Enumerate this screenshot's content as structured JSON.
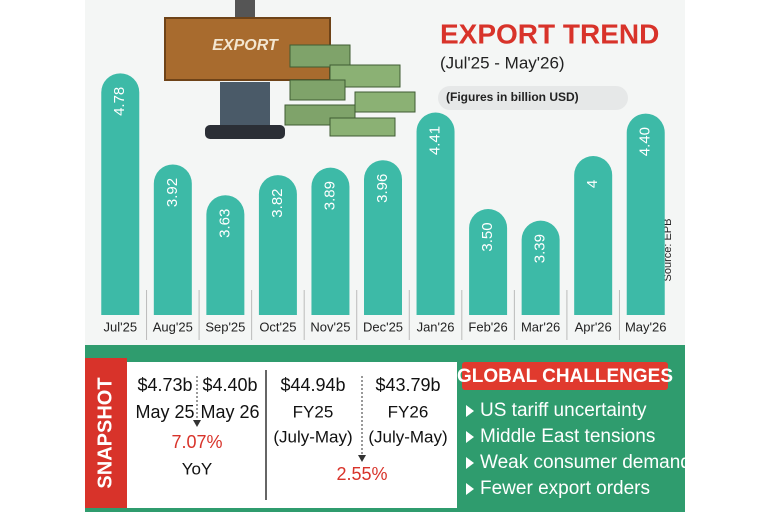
{
  "chart_data": {
    "type": "bar",
    "title": "EXPORT TREND",
    "subtitle": "(Jul'25 - May'26)",
    "note": "(Figures in billion USD)",
    "source": "Source: EPB",
    "image_label": "EXPORT",
    "categories": [
      "Jul'25",
      "Aug'25",
      "Sep'25",
      "Oct'25",
      "Nov'25",
      "Dec'25",
      "Jan'26",
      "Feb'26",
      "Mar'26",
      "Apr'26",
      "May'26"
    ],
    "values": [
      4.78,
      3.92,
      3.63,
      3.82,
      3.89,
      3.96,
      4.41,
      3.5,
      3.39,
      4,
      4.4
    ],
    "value_labels": [
      "4.78",
      "3.92",
      "3.63",
      "3.82",
      "3.89",
      "3.96",
      "4.41",
      "3.50",
      "3.39",
      "4",
      "4.40"
    ],
    "color": "#3dbaa7",
    "ylim": [
      2.5,
      5
    ]
  },
  "snapshot": {
    "label": "SNAPSHOT",
    "monthly": {
      "from_value": "$4.73b",
      "from_label": "May 25",
      "to_value": "$4.40b",
      "to_label": "May 26",
      "change": "7.07%",
      "change_label": "YoY"
    },
    "fiscal": {
      "from_value": "$44.94b",
      "from_label": "FY25",
      "from_period": "(July-May)",
      "to_value": "$43.79b",
      "to_label": "FY26",
      "to_period": "(July-May)",
      "change": "2.55%"
    }
  },
  "challenges": {
    "title": "GLOBAL CHALLENGES",
    "items": [
      "US tariff uncertainty",
      "Middle East tensions",
      "Weak consumer demand",
      "Fewer export orders"
    ]
  }
}
